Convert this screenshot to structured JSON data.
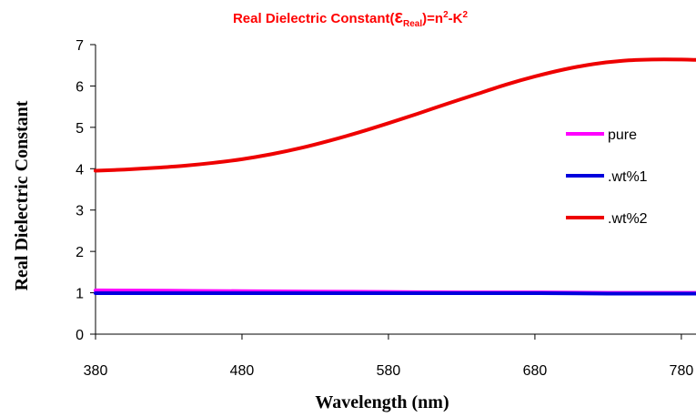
{
  "chart_data": {
    "type": "line",
    "title": {
      "prefix": "Real Dielectric Constant(",
      "symbol": "ε",
      "subscript": "Real",
      "middle": ")=n",
      "sup1": "2",
      "dash": "-K",
      "sup2": "2"
    },
    "xlabel": "Wavelength (nm)",
    "ylabel": "Real Dielectric Constant",
    "xlim": [
      380,
      790
    ],
    "ylim": [
      0,
      7
    ],
    "xticks": [
      380,
      480,
      580,
      680,
      780
    ],
    "yticks": [
      0,
      1,
      2,
      3,
      4,
      5,
      6,
      7
    ],
    "grid": false,
    "legend_position": "right",
    "series": [
      {
        "name": "pure",
        "color": "#ff00ff",
        "x": [
          380,
          430,
          480,
          530,
          580,
          630,
          680,
          730,
          780,
          790
        ],
        "y": [
          1.06,
          1.05,
          1.04,
          1.03,
          1.02,
          1.01,
          1.01,
          1.0,
          1.0,
          1.0
        ]
      },
      {
        "name": ".wt%1",
        "color": "#0000dd",
        "x": [
          380,
          430,
          480,
          530,
          580,
          630,
          680,
          730,
          780,
          790
        ],
        "y": [
          0.99,
          0.99,
          0.99,
          0.99,
          0.99,
          0.99,
          0.99,
          0.98,
          0.98,
          0.98
        ]
      },
      {
        "name": ".wt%2",
        "color": "#ee0000",
        "x": [
          380,
          400,
          420,
          440,
          460,
          480,
          500,
          520,
          540,
          560,
          580,
          600,
          620,
          640,
          660,
          680,
          700,
          720,
          740,
          760,
          780,
          790
        ],
        "y": [
          3.95,
          3.98,
          4.02,
          4.07,
          4.14,
          4.23,
          4.35,
          4.5,
          4.68,
          4.88,
          5.1,
          5.33,
          5.57,
          5.8,
          6.03,
          6.23,
          6.4,
          6.53,
          6.61,
          6.64,
          6.64,
          6.63
        ]
      }
    ]
  }
}
